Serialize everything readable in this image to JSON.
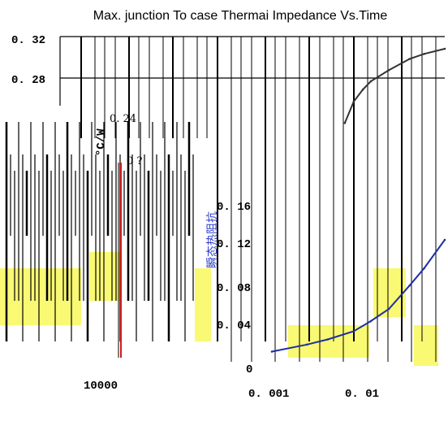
{
  "chart_data": {
    "type": "line",
    "title": "Max. junction To case Thermai Impedance Vs.Time",
    "xlabel": "",
    "ylabel": "瞬态热阻抗",
    "y_unit": "°C/W",
    "x_scale": "log",
    "xlim": [
      0.001,
      0.03
    ],
    "ylim": [
      0,
      0.32
    ],
    "y_ticks": [
      "0. 32",
      "0. 28",
      "0. 24",
      "0. 2",
      "0. 16",
      "0. 12",
      "0. 08",
      "0. 04",
      "0"
    ],
    "x_ticks": [
      "0. 001",
      "0. 01"
    ],
    "stray_labels": [
      "10000",
      "0 ?"
    ],
    "grid": true,
    "series": [
      {
        "color": "#1f2fa0",
        "x": [
          0.001,
          0.002,
          0.003,
          0.005,
          0.007,
          0.01,
          0.015,
          0.02,
          0.03
        ],
        "y": [
          0.01,
          0.017,
          0.022,
          0.03,
          0.04,
          0.052,
          0.075,
          0.092,
          0.12
        ]
      },
      {
        "color": "#333333",
        "x": [
          0.0042,
          0.005,
          0.006,
          0.007,
          0.01,
          0.015,
          0.02,
          0.03
        ],
        "y": [
          0.235,
          0.256,
          0.268,
          0.276,
          0.287,
          0.298,
          0.303,
          0.308
        ]
      }
    ]
  },
  "colors": {
    "yellow_artifact": "#f4f400",
    "red_line": "#d11a1a",
    "series_blue": "#1f2fa0"
  }
}
